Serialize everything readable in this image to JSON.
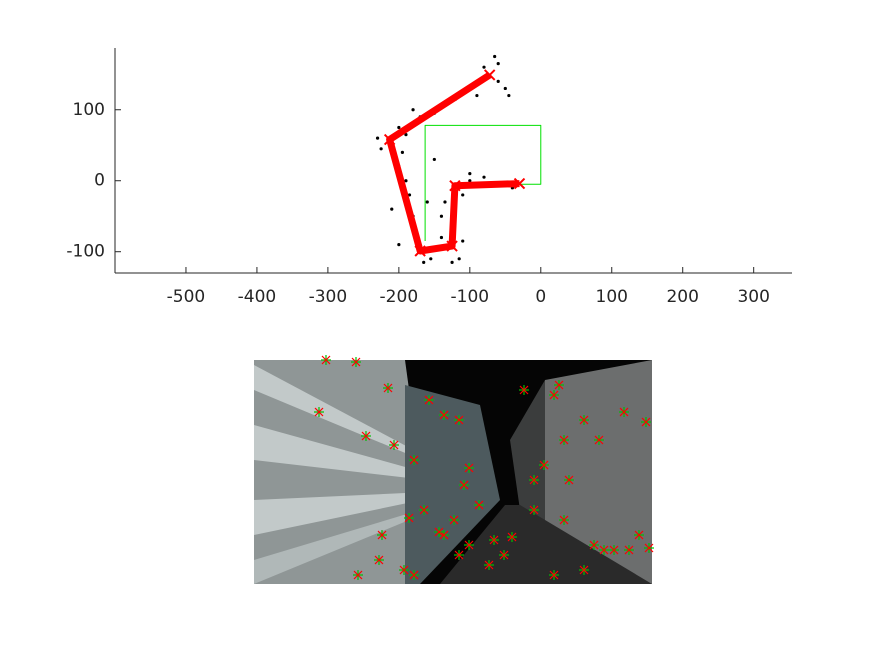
{
  "chart_data": [
    {
      "type": "trajectory",
      "xlim": [
        -600,
        354
      ],
      "ylim": [
        -130,
        187
      ],
      "xticks": [
        -500,
        -400,
        -300,
        -200,
        -100,
        0,
        100,
        200,
        300
      ],
      "yticks": [
        -100,
        0,
        100
      ],
      "map_points": {
        "color": "#000000",
        "x": [
          -200,
          -190,
          -225,
          -230,
          -170,
          -150,
          -120,
          -100,
          -80,
          -60,
          -50,
          -45,
          -60,
          -90,
          -195,
          -200,
          -190,
          -185,
          -180,
          -175,
          -165,
          -155,
          -125,
          -115,
          -140,
          -135,
          -110,
          -100,
          -80,
          -60,
          -40,
          -100,
          -150,
          -160,
          -200,
          -210,
          -180,
          -65,
          -140,
          -110
        ],
        "y": [
          75,
          65,
          45,
          60,
          90,
          95,
          115,
          130,
          160,
          165,
          130,
          120,
          140,
          120,
          40,
          20,
          0,
          -20,
          -50,
          -80,
          -115,
          -110,
          -115,
          -110,
          -50,
          -30,
          -20,
          0,
          5,
          -5,
          -10,
          10,
          30,
          -30,
          -90,
          -40,
          100,
          175,
          -80,
          -85
        ]
      },
      "series": [
        {
          "color": "#00e000",
          "x": [
            -163,
            -163,
            0,
            0,
            -125
          ],
          "y": [
            -85,
            78,
            78,
            -5,
            -5
          ]
        },
        {
          "color": "#ff0000",
          "x": [
            -30,
            -121,
            -125,
            -170,
            -213,
            -72
          ],
          "y": [
            -4,
            -7,
            -92,
            -99,
            58,
            149
          ]
        }
      ]
    },
    {
      "type": "image-features",
      "color": "#ff0000",
      "color2": "#00c000",
      "x": [
        72,
        102,
        65,
        112,
        134,
        160,
        175,
        190,
        205,
        215,
        210,
        170,
        155,
        128,
        125,
        150,
        104,
        160,
        190,
        200,
        215,
        240,
        258,
        300,
        310,
        330,
        345,
        370,
        392,
        280,
        315,
        310,
        340,
        360,
        385,
        395,
        300,
        330,
        235,
        250,
        205,
        185,
        225,
        280,
        290,
        350,
        375,
        270,
        305,
        140
      ],
      "y": [
        0,
        2,
        52,
        76,
        28,
        100,
        40,
        55,
        60,
        108,
        125,
        150,
        158,
        175,
        200,
        210,
        215,
        215,
        175,
        160,
        185,
        180,
        177,
        35,
        80,
        60,
        80,
        52,
        62,
        120,
        120,
        160,
        185,
        190,
        175,
        188,
        215,
        210,
        205,
        195,
        195,
        172,
        145,
        150,
        105,
        190,
        190,
        30,
        25,
        85
      ]
    }
  ]
}
